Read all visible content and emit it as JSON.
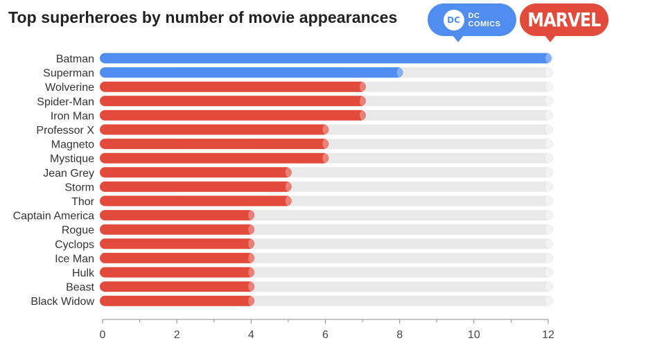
{
  "title": "Top superheroes by number of movie appearances",
  "badges": {
    "dc": {
      "label_line1": "DC",
      "label_line2": "COMICS",
      "mark": "DC",
      "color": "#4f8ef0"
    },
    "marvel": {
      "label": "MARVEL",
      "color": "#e24b3b"
    }
  },
  "colors": {
    "dc": "#4f8ef0",
    "marvel": "#e24b3b",
    "track": "#e9e9e9",
    "axis": "#888888"
  },
  "chart_data": {
    "type": "bar",
    "orientation": "horizontal",
    "title": "Top superheroes by number of movie appearances",
    "xlabel": "",
    "ylabel": "",
    "xlim": [
      0,
      12
    ],
    "xticks": [
      0,
      2,
      4,
      6,
      8,
      10,
      12
    ],
    "grid": false,
    "legend": "top-right",
    "series": [
      {
        "name": "DC COMICS",
        "color": "#4f8ef0"
      },
      {
        "name": "MARVEL",
        "color": "#e24b3b"
      }
    ],
    "categories": [
      "Batman",
      "Superman",
      "Wolverine",
      "Spider-Man",
      "Iron Man",
      "Professor X",
      "Magneto",
      "Mystique",
      "Jean Grey",
      "Storm",
      "Thor",
      "Captain America",
      "Rogue",
      "Cyclops",
      "Ice Man",
      "Hulk",
      "Beast",
      "Black Widow"
    ],
    "values": [
      12,
      8,
      7,
      7,
      7,
      6,
      6,
      6,
      5,
      5,
      5,
      4,
      4,
      4,
      4,
      4,
      4,
      4
    ],
    "publisher": [
      "DC COMICS",
      "DC COMICS",
      "MARVEL",
      "MARVEL",
      "MARVEL",
      "MARVEL",
      "MARVEL",
      "MARVEL",
      "MARVEL",
      "MARVEL",
      "MARVEL",
      "MARVEL",
      "MARVEL",
      "MARVEL",
      "MARVEL",
      "MARVEL",
      "MARVEL",
      "MARVEL"
    ]
  }
}
